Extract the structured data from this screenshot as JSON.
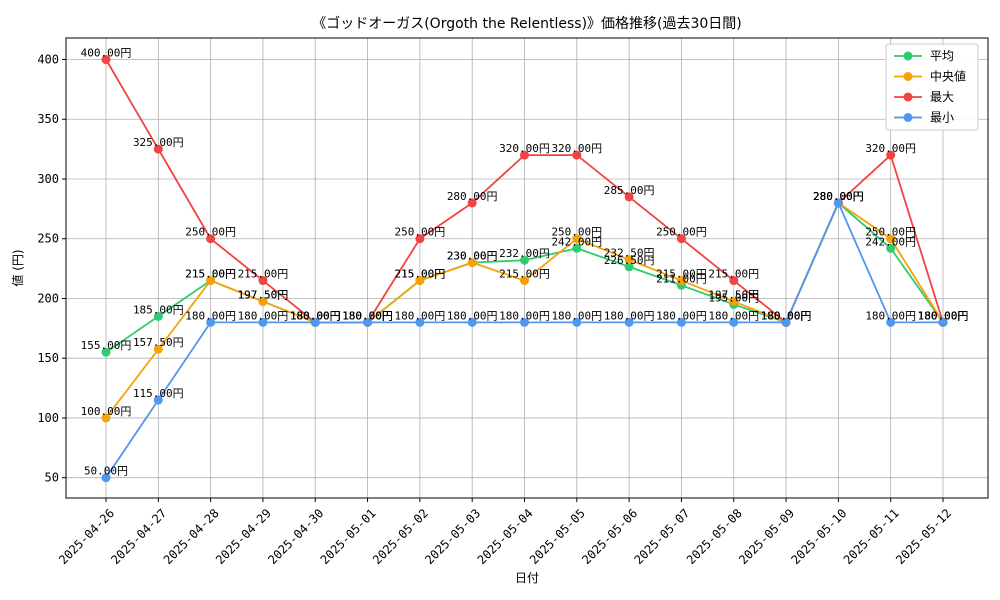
{
  "chart_data": {
    "type": "line",
    "title": "《ゴッドオーガス(Orgoth the Relentless)》価格推移(過去30日間)",
    "xlabel": "日付",
    "ylabel": "値 (円)",
    "ylim": [
      33,
      418
    ],
    "yticks": [
      50,
      100,
      150,
      200,
      250,
      300,
      350,
      400
    ],
    "grid": true,
    "legend_position": "top-right",
    "label_suffix": "円",
    "categories": [
      "2025-04-26",
      "2025-04-27",
      "2025-04-28",
      "2025-04-29",
      "2025-04-30",
      "2025-05-01",
      "2025-05-02",
      "2025-05-03",
      "2025-05-04",
      "2025-05-05",
      "2025-05-06",
      "2025-05-07",
      "2025-05-08",
      "2025-05-09",
      "2025-05-10",
      "2025-05-11",
      "2025-05-12"
    ],
    "series": [
      {
        "name": "平均",
        "color": "#2ecc71",
        "values": [
          155,
          185,
          215,
          197.5,
          180,
          180,
          215,
          230,
          232,
          242,
          226.5,
          211,
          195,
          180,
          280,
          242,
          180
        ]
      },
      {
        "name": "中央値",
        "color": "#f5a10a",
        "values": [
          100,
          157.5,
          215,
          197.5,
          180,
          180,
          215,
          230,
          215,
          250,
          232.5,
          215,
          197.5,
          180,
          280,
          250,
          180
        ]
      },
      {
        "name": "最大",
        "color": "#ef4444",
        "values": [
          400,
          325,
          250,
          215,
          180,
          180,
          250,
          280,
          320,
          320,
          285,
          250,
          215,
          180,
          280,
          320,
          180
        ]
      },
      {
        "name": "最小",
        "color": "#4f97ef",
        "values": [
          50,
          115,
          180,
          180,
          180,
          180,
          180,
          180,
          180,
          180,
          180,
          180,
          180,
          180,
          280,
          180,
          180
        ]
      }
    ]
  }
}
